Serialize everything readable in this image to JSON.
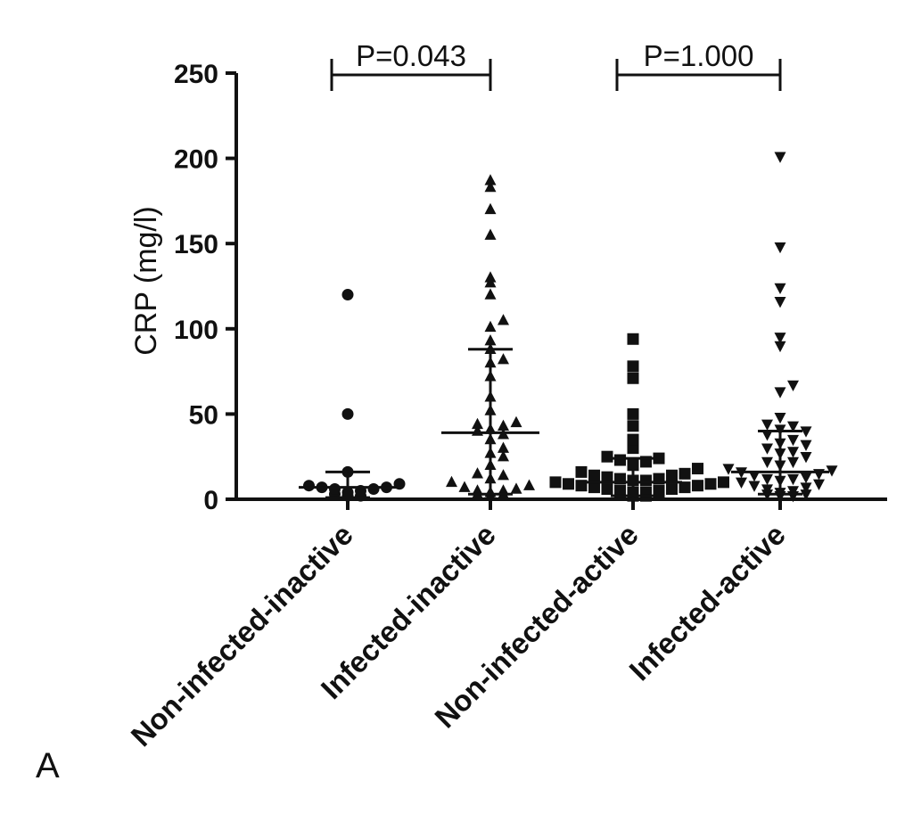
{
  "panel_label": "A",
  "chart_data": {
    "type": "scatter",
    "title": "",
    "xlabel": "",
    "ylabel": "CRP (mg/l)",
    "ylim": [
      0,
      250
    ],
    "yticks": [
      0,
      50,
      100,
      150,
      200,
      250
    ],
    "categories": [
      "Non-infected-inactive",
      "Infected-inactive",
      "Non-infected-active",
      "Infected-active"
    ],
    "grid": false,
    "legend": "none",
    "series": [
      {
        "category": "Non-infected-inactive",
        "marker": "circle",
        "median": 7,
        "upper": 16,
        "lower": 1,
        "values": [
          120,
          50,
          16,
          8,
          7,
          6,
          5,
          4,
          3,
          2,
          2,
          6,
          7,
          9
        ]
      },
      {
        "category": "Infected-inactive",
        "marker": "triangle-up",
        "median": 39,
        "upper": 88,
        "lower": 3,
        "values": [
          187,
          183,
          170,
          155,
          130,
          127,
          120,
          105,
          101,
          93,
          88,
          82,
          80,
          72,
          60,
          52,
          45,
          44,
          43,
          41,
          40,
          38,
          35,
          30,
          27,
          25,
          20,
          15,
          12,
          8,
          6,
          5,
          4,
          3,
          3,
          2,
          5,
          7,
          10,
          14
        ]
      },
      {
        "category": "Non-infected-active",
        "marker": "square",
        "median": 10,
        "upper": 24,
        "lower": 2,
        "values": [
          94,
          78,
          71,
          50,
          43,
          35,
          30,
          25,
          24,
          23,
          22,
          20,
          18,
          16,
          15,
          14,
          13,
          12,
          11,
          10,
          10,
          9,
          9,
          8,
          8,
          7,
          7,
          6,
          6,
          5,
          5,
          4,
          4,
          3,
          3,
          2,
          2,
          12,
          14,
          11
        ]
      },
      {
        "category": "Infected-active",
        "marker": "triangle-down",
        "median": 16,
        "upper": 40,
        "lower": 3,
        "values": [
          201,
          148,
          124,
          116,
          95,
          90,
          67,
          63,
          48,
          44,
          43,
          41,
          40,
          38,
          35,
          32,
          30,
          28,
          25,
          22,
          20,
          18,
          17,
          16,
          15,
          14,
          13,
          12,
          11,
          10,
          9,
          8,
          7,
          6,
          5,
          4,
          3,
          3,
          2,
          2,
          22,
          27,
          33,
          12
        ]
      }
    ],
    "annotations": [
      {
        "text": "P=0.043",
        "from": "Non-infected-inactive",
        "to": "Infected-inactive",
        "y": 250
      },
      {
        "text": "P=1.000",
        "from": "Non-infected-active",
        "to": "Infected-active",
        "y": 250
      }
    ]
  }
}
